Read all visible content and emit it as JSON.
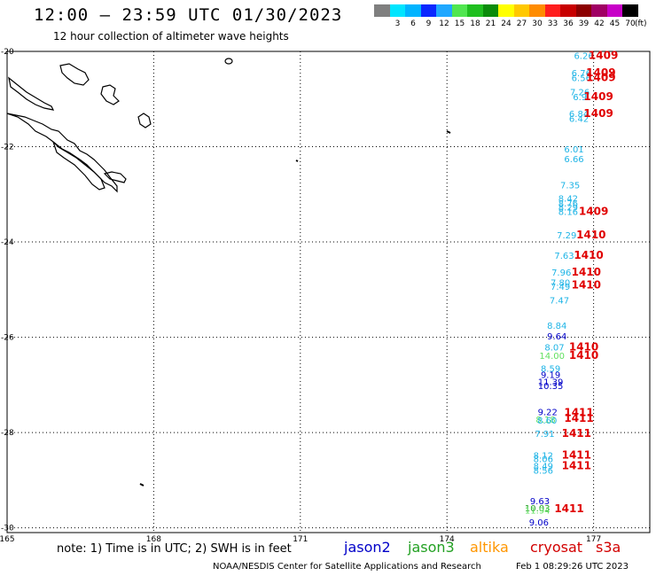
{
  "header": {
    "title": "12:00 — 23:59 UTC 01/30/2023",
    "subtitle": "12 hour collection of altimeter wave heights"
  },
  "scale": {
    "unit": "(ft)",
    "bins": [
      {
        "label": "",
        "color": "#7f7f7f"
      },
      {
        "label": "3",
        "color": "#00e5ff"
      },
      {
        "label": "6",
        "color": "#00b4ff"
      },
      {
        "label": "9",
        "color": "#0a28ff"
      },
      {
        "label": "12",
        "color": "#1fa8ff"
      },
      {
        "label": "15",
        "color": "#50e650"
      },
      {
        "label": "18",
        "color": "#1fbf1f"
      },
      {
        "label": "21",
        "color": "#0a8c0a"
      },
      {
        "label": "24",
        "color": "#ffff00"
      },
      {
        "label": "27",
        "color": "#ffc800"
      },
      {
        "label": "30",
        "color": "#ff8c00"
      },
      {
        "label": "33",
        "color": "#ff1e1e"
      },
      {
        "label": "36",
        "color": "#c80000"
      },
      {
        "label": "39",
        "color": "#8c0000"
      },
      {
        "label": "42",
        "color": "#a00064"
      },
      {
        "label": "45",
        "color": "#c800c8"
      },
      {
        "label": "70",
        "color": "#000000"
      }
    ]
  },
  "axes": {
    "lat_labels": [
      "-20",
      "-22",
      "-24",
      "-26",
      "-28",
      "-30"
    ],
    "lon_labels": [
      "165",
      "168",
      "171",
      "174",
      "177"
    ]
  },
  "colors": {
    "jason2": "#0000c8",
    "jason3": "#22a022",
    "altika": "#ff9600",
    "cryosat": "#d20000",
    "s3a": "#d20000",
    "cyan_obs": "#1eb4e6",
    "light_green_obs": "#60e060",
    "pass_label": "#e00000"
  },
  "observations": [
    {
      "text": "6.26",
      "lon": 176.8,
      "lat": -20.08,
      "sat": "cyan"
    },
    {
      "text": "6.76",
      "lon": 176.75,
      "lat": -20.45,
      "sat": "cyan"
    },
    {
      "text": "6.56",
      "lon": 176.75,
      "lat": -20.55,
      "sat": "cyan"
    },
    {
      "text": "7.26",
      "lon": 176.72,
      "lat": -20.85,
      "sat": "cyan"
    },
    {
      "text": "6.9",
      "lon": 176.72,
      "lat": -20.95,
      "sat": "cyan"
    },
    {
      "text": "6.84",
      "lon": 176.7,
      "lat": -21.3,
      "sat": "cyan"
    },
    {
      "text": "6.42",
      "lon": 176.7,
      "lat": -21.4,
      "sat": "cyan"
    },
    {
      "text": "6.01",
      "lon": 176.6,
      "lat": -22.05,
      "sat": "cyan"
    },
    {
      "text": "6.66",
      "lon": 176.6,
      "lat": -22.25,
      "sat": "cyan"
    },
    {
      "text": "7.35",
      "lon": 176.52,
      "lat": -22.8,
      "sat": "cyan"
    },
    {
      "text": "8.42",
      "lon": 176.48,
      "lat": -23.08,
      "sat": "cyan"
    },
    {
      "text": "8.76",
      "lon": 176.48,
      "lat": -23.18,
      "sat": "cyan"
    },
    {
      "text": "8.29",
      "lon": 176.48,
      "lat": -23.26,
      "sat": "cyan"
    },
    {
      "text": "8.16",
      "lon": 176.48,
      "lat": -23.36,
      "sat": "cyan"
    },
    {
      "text": "7.29",
      "lon": 176.45,
      "lat": -23.85,
      "sat": "cyan"
    },
    {
      "text": "7.63",
      "lon": 176.4,
      "lat": -24.28,
      "sat": "cyan"
    },
    {
      "text": "7.96",
      "lon": 176.34,
      "lat": -24.63,
      "sat": "cyan"
    },
    {
      "text": "7.80",
      "lon": 176.32,
      "lat": -24.85,
      "sat": "cyan"
    },
    {
      "text": "7.49",
      "lon": 176.32,
      "lat": -24.93,
      "sat": "cyan"
    },
    {
      "text": "7.47",
      "lon": 176.3,
      "lat": -25.22,
      "sat": "cyan"
    },
    {
      "text": "8.84",
      "lon": 176.25,
      "lat": -25.75,
      "sat": "cyan"
    },
    {
      "text": "9.64",
      "lon": 176.25,
      "lat": -25.97,
      "sat": "jason2"
    },
    {
      "text": "8.07",
      "lon": 176.2,
      "lat": -26.2,
      "sat": "cyan"
    },
    {
      "text": "14.00",
      "lon": 176.15,
      "lat": -26.38,
      "sat": "lightgreen"
    },
    {
      "text": "8.59",
      "lon": 176.12,
      "lat": -26.65,
      "sat": "cyan"
    },
    {
      "text": "9.19",
      "lon": 176.12,
      "lat": -26.78,
      "sat": "jason2"
    },
    {
      "text": "11.39",
      "lon": 176.12,
      "lat": -26.93,
      "sat": "jason2"
    },
    {
      "text": "10.35",
      "lon": 176.12,
      "lat": -27.01,
      "sat": "jason2"
    },
    {
      "text": "9.22",
      "lon": 176.06,
      "lat": -27.56,
      "sat": "jason2"
    },
    {
      "text": "8.18",
      "lon": 176.02,
      "lat": -27.72,
      "sat": "lightgreen"
    },
    {
      "text": "8.60",
      "lon": 176.05,
      "lat": -27.74,
      "sat": "cyan"
    },
    {
      "text": "7.91",
      "lon": 176.0,
      "lat": -28.02,
      "sat": "cyan"
    },
    {
      "text": "8.12",
      "lon": 175.97,
      "lat": -28.47,
      "sat": "cyan"
    },
    {
      "text": "8.06",
      "lon": 175.97,
      "lat": -28.55,
      "sat": "cyan"
    },
    {
      "text": "8.49",
      "lon": 175.97,
      "lat": -28.7,
      "sat": "cyan"
    },
    {
      "text": "8.56",
      "lon": 175.97,
      "lat": -28.79,
      "sat": "cyan"
    },
    {
      "text": "9.63",
      "lon": 175.9,
      "lat": -29.43,
      "sat": "jason2"
    },
    {
      "text": "10.03",
      "lon": 175.85,
      "lat": -29.58,
      "sat": "jason3"
    },
    {
      "text": "11.94",
      "lon": 175.85,
      "lat": -29.63,
      "sat": "lightgreen"
    },
    {
      "text": "9.06",
      "lon": 175.88,
      "lat": -29.88,
      "sat": "jason2"
    }
  ],
  "passes": [
    {
      "text": "1409",
      "lon": 177.2,
      "lat": -20.08
    },
    {
      "text": "1409",
      "lon": 177.15,
      "lat": -20.45
    },
    {
      "text": "1409",
      "lon": 177.15,
      "lat": -20.55
    },
    {
      "text": "1409",
      "lon": 177.1,
      "lat": -20.95
    },
    {
      "text": "1409",
      "lon": 177.1,
      "lat": -21.3
    },
    {
      "text": "1409",
      "lon": 177.0,
      "lat": -23.36
    },
    {
      "text": "1410",
      "lon": 176.95,
      "lat": -23.85
    },
    {
      "text": "1410",
      "lon": 176.9,
      "lat": -24.28
    },
    {
      "text": "1410",
      "lon": 176.85,
      "lat": -24.63
    },
    {
      "text": "1410",
      "lon": 176.85,
      "lat": -24.9
    },
    {
      "text": "1410",
      "lon": 176.8,
      "lat": -26.2
    },
    {
      "text": "1410",
      "lon": 176.8,
      "lat": -26.38
    },
    {
      "text": "1411",
      "lon": 176.7,
      "lat": -27.58
    },
    {
      "text": "1411",
      "lon": 176.7,
      "lat": -27.7
    },
    {
      "text": "1411",
      "lon": 176.65,
      "lat": -28.02
    },
    {
      "text": "1411",
      "lon": 176.65,
      "lat": -28.47
    },
    {
      "text": "1411",
      "lon": 176.65,
      "lat": -28.7
    },
    {
      "text": "1411",
      "lon": 176.5,
      "lat": -29.6
    }
  ],
  "legend": {
    "note": "note: 1) Time is in UTC; 2) SWH is in feet",
    "satellites": [
      {
        "name": "jason2",
        "color": "#0000c8"
      },
      {
        "name": "jason3",
        "color": "#22a022"
      },
      {
        "name": "altika",
        "color": "#ff9600"
      },
      {
        "name": "cryosat",
        "color": "#d20000"
      },
      {
        "name": "s3a",
        "color": "#d20000"
      }
    ]
  },
  "footer": {
    "credit": "NOAA/NESDIS Center for Satellite Applications and Research",
    "generated": "Feb  1 08:29:26 UTC 2023"
  }
}
